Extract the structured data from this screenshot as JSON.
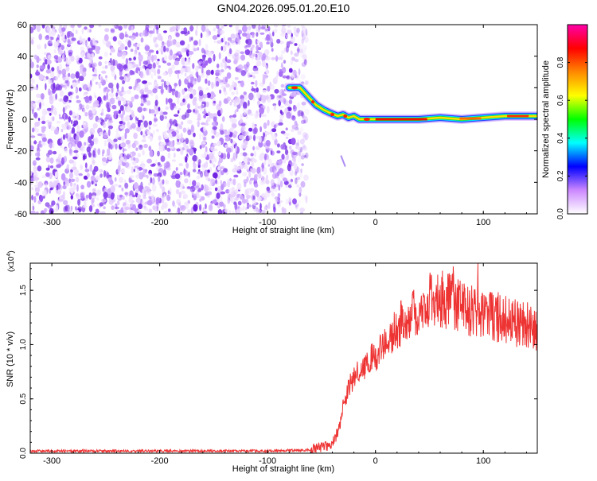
{
  "title": "GN04.2026.095.01.20.E10",
  "chart_data": [
    {
      "type": "heatmap",
      "xlabel": "Height of straight line (km)",
      "ylabel": "Frequency (Hz)",
      "xlim": [
        -320,
        150
      ],
      "ylim": [
        -60,
        60
      ],
      "xticks": [
        -300,
        -200,
        -100,
        0,
        100
      ],
      "yticks": [
        -60,
        -40,
        -20,
        0,
        20,
        40,
        60
      ],
      "noise_region_x": [
        -320,
        -68
      ],
      "signal_track": {
        "x": [
          -80,
          -70,
          -62,
          -55,
          -48,
          -42,
          -35,
          -30,
          -25,
          -20,
          -15,
          -10,
          0,
          20,
          40,
          60,
          80,
          100,
          120,
          150
        ],
        "freq": [
          20,
          20,
          14,
          9,
          6,
          4,
          2,
          3,
          1,
          2,
          0,
          0,
          0,
          0,
          0,
          1,
          0,
          1,
          2,
          2
        ]
      },
      "faint_streak": {
        "x": [
          -32,
          -28
        ],
        "freq": [
          -23,
          -30
        ]
      },
      "colorbar": {
        "label": "Normalized spectral amplitude",
        "range": [
          0,
          1
        ],
        "ticks": [
          0.0,
          0.2,
          0.4,
          0.6,
          0.8
        ],
        "tick_labels": [
          "0.0",
          "0.2",
          "0.4",
          "0.6",
          "0.8"
        ],
        "colors": [
          "#ffffff",
          "#cc88ff",
          "#0000ff",
          "#00ffff",
          "#00ff00",
          "#ffff00",
          "#ff8800",
          "#ff0000",
          "#ff00aa"
        ]
      }
    },
    {
      "type": "line",
      "xlabel": "Height of straight line (km)",
      "ylabel": "SNR (10 * v/v)",
      "exponent_label": "(x10",
      "exponent_power": "4",
      "exponent_close": ")",
      "xlim": [
        -320,
        150
      ],
      "ylim": [
        0,
        1.75
      ],
      "xticks": [
        -300,
        -200,
        -100,
        0,
        100
      ],
      "yticks": [
        0.0,
        0.5,
        1.0,
        1.5
      ],
      "ytick_labels": [
        "0.0",
        "0.5",
        "1.0",
        "1.5"
      ],
      "line_color": "#ee3333",
      "envelope": {
        "x": [
          -320,
          -100,
          -60,
          -45,
          -38,
          -33,
          -30,
          -25,
          -20,
          -10,
          0,
          10,
          20,
          30,
          40,
          50,
          60,
          70,
          80,
          90,
          100,
          110,
          120,
          130,
          140,
          150
        ],
        "y": [
          0.02,
          0.02,
          0.03,
          0.06,
          0.12,
          0.25,
          0.45,
          0.6,
          0.7,
          0.8,
          0.9,
          1.05,
          1.15,
          1.25,
          1.35,
          1.4,
          1.4,
          1.4,
          1.35,
          1.3,
          1.3,
          1.25,
          1.25,
          1.2,
          1.18,
          1.15
        ]
      },
      "peaks": {
        "x": [
          62,
          72,
          95
        ],
        "y": [
          1.68,
          1.72,
          1.75
        ]
      }
    }
  ]
}
